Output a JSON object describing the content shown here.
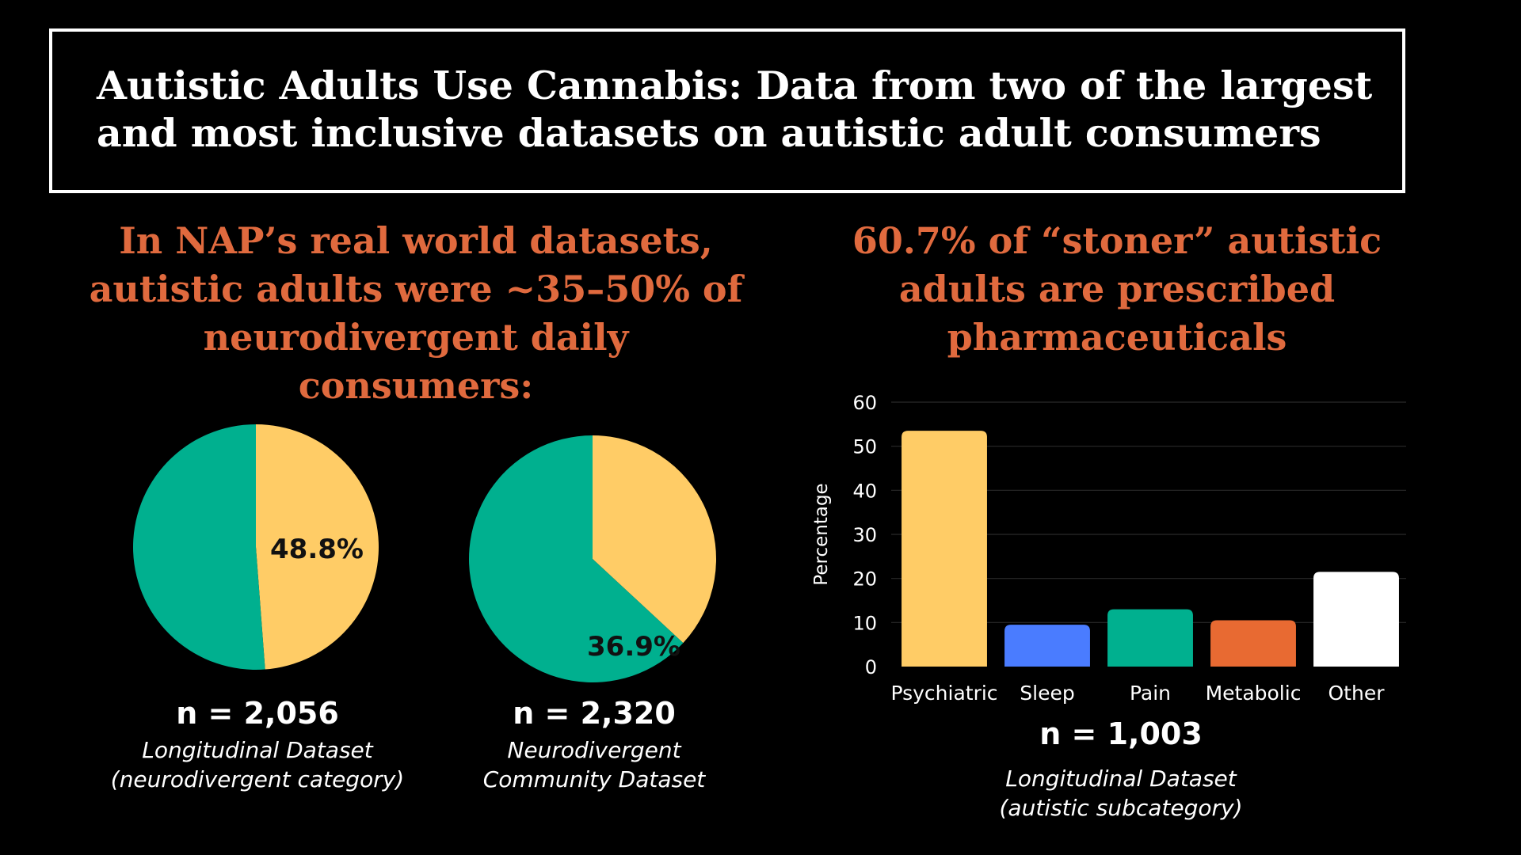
{
  "title": "Autistic Adults Use Cannabis: Data from two of the largest and most inclusive datasets on autistic adult consumers",
  "left_headline": "In NAP’s real world datasets, autistic adults were ~35–50% of neurodivergent daily consumers:",
  "right_headline": "60.7% of “stoner” autistic adults are prescribed pharmaceuticals",
  "colors": {
    "accent": "#e06a3e",
    "teal": "#00b08f",
    "yellow": "#ffcc66",
    "blue": "#4a7cff",
    "orange": "#e86a32",
    "white": "#ffffff"
  },
  "chart_data": [
    {
      "type": "pie",
      "slices": [
        {
          "value": 48.8,
          "label": "48.8%",
          "color": "#ffcc66"
        },
        {
          "value": 51.2,
          "label": "",
          "color": "#00b08f"
        }
      ],
      "n": "n = 2,056",
      "dataset": [
        "Longitudinal Dataset",
        "(neurodivergent category)"
      ]
    },
    {
      "type": "pie",
      "slices": [
        {
          "value": 36.9,
          "label": "36.9%",
          "color": "#ffcc66"
        },
        {
          "value": 63.1,
          "label": "",
          "color": "#00b08f"
        }
      ],
      "n": "n = 2,320",
      "dataset": [
        "Neurodivergent",
        "Community Dataset"
      ]
    },
    {
      "type": "bar",
      "categories": [
        "Psychiatric",
        "Sleep",
        "Pain",
        "Metabolic",
        "Other"
      ],
      "values": [
        53.5,
        9.5,
        13,
        10.5,
        21.5
      ],
      "colors": [
        "#ffcc66",
        "#4a7cff",
        "#00b08f",
        "#e86a32",
        "#ffffff"
      ],
      "ylabel": "Percentage",
      "ylim": [
        0,
        60
      ],
      "yticks": [
        0,
        10,
        20,
        30,
        40,
        50,
        60
      ],
      "grid": true,
      "n": "n = 1,003",
      "dataset": [
        "Longitudinal Dataset",
        "(autistic subcategory)"
      ]
    }
  ]
}
